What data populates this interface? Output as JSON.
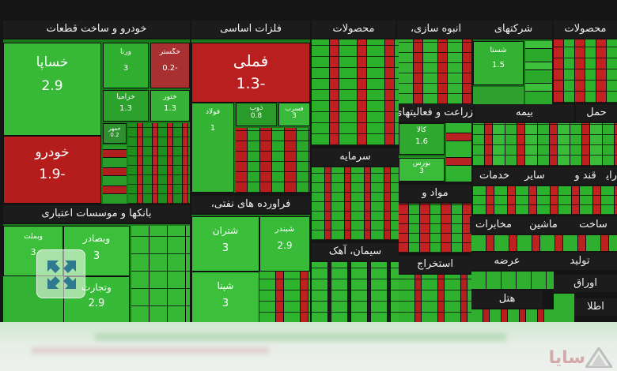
{
  "chart_data": {
    "type": "heatmap",
    "subtype": "treemap",
    "colors": {
      "up": "#39b639",
      "up_strong": "#27c027",
      "down": "#b41c1c",
      "down_strong": "#8e1010",
      "header": "#1c1c1c"
    },
    "groups": [
      {
        "name": "خودرو و ساخت قطعات",
        "stocks": [
          {
            "name": "خساپا",
            "value": 2.9
          },
          {
            "name": "خودرو",
            "value": -1.9
          },
          {
            "name": "ورنا",
            "value": 3.0
          },
          {
            "name": "خگستر",
            "value": -0.2
          },
          {
            "name": "خزامیا",
            "value": 1.3
          },
          {
            "name": "ختور",
            "value": 1.3
          },
          {
            "name": "خمهر",
            "value": 0.2
          }
        ]
      },
      {
        "name": "فلزات اساسی",
        "stocks": [
          {
            "name": "فملی",
            "value": -1.3
          },
          {
            "name": "فولاد",
            "value": 1.0
          },
          {
            "name": "ذوب",
            "value": 0.8
          },
          {
            "name": "فسرب",
            "value": 3.0
          }
        ]
      },
      {
        "name": "محصولات",
        "stocks": []
      },
      {
        "name": "انبوه سازی،",
        "stocks": []
      },
      {
        "name": "شرکتهای",
        "stocks": [
          {
            "name": "شستا",
            "value": 1.5
          }
        ]
      },
      {
        "name": "محصولات",
        "stocks": []
      },
      {
        "name": "زراعت و فعالیتهای",
        "stocks": [
          {
            "name": "کالا",
            "value": 1.6
          }
        ]
      },
      {
        "name": "بیمه",
        "stocks": []
      },
      {
        "name": "حمل",
        "stocks": []
      },
      {
        "name": "سرمایه",
        "stocks": [
          {
            "name": "بورس",
            "value": 3.0
          }
        ]
      },
      {
        "name": "قند و",
        "stocks": []
      },
      {
        "name": "سایر",
        "stocks": []
      },
      {
        "name": "خدمات",
        "stocks": []
      },
      {
        "name": "رایانه",
        "stocks": []
      },
      {
        "name": "مواد و",
        "stocks": []
      },
      {
        "name": "استخراج",
        "stocks": []
      },
      {
        "name": "ساخت",
        "stocks": []
      },
      {
        "name": "ماشین",
        "stocks": []
      },
      {
        "name": "مخابرات",
        "stocks": []
      },
      {
        "name": "بانکها و موسسات اعتباری",
        "stocks": [
          {
            "name": "وبملت",
            "value": 3.0
          },
          {
            "name": "وبصادر",
            "value": 3.0
          },
          {
            "name": "وتجارت",
            "value": 2.9
          }
        ]
      },
      {
        "name": "فراورده های نفتی،",
        "stocks": [
          {
            "name": "شتران",
            "value": 3.0
          },
          {
            "name": "شبندر",
            "value": 2.9
          },
          {
            "name": "شپنا",
            "value": 3.0
          }
        ]
      },
      {
        "name": "سیمان، آهک",
        "stocks": []
      },
      {
        "name": "سایر",
        "stocks": []
      },
      {
        "name": "عرضه",
        "stocks": []
      },
      {
        "name": "هتل",
        "stocks": []
      },
      {
        "name": "تولید",
        "stocks": []
      },
      {
        "name": "اوراق",
        "stocks": []
      },
      {
        "name": "اطلا",
        "stocks": []
      }
    ]
  },
  "ui": {
    "expand_icon": "collapse-arrows-icon",
    "logo_icon": "sapa-logo-icon",
    "logo_text": "سایا"
  }
}
